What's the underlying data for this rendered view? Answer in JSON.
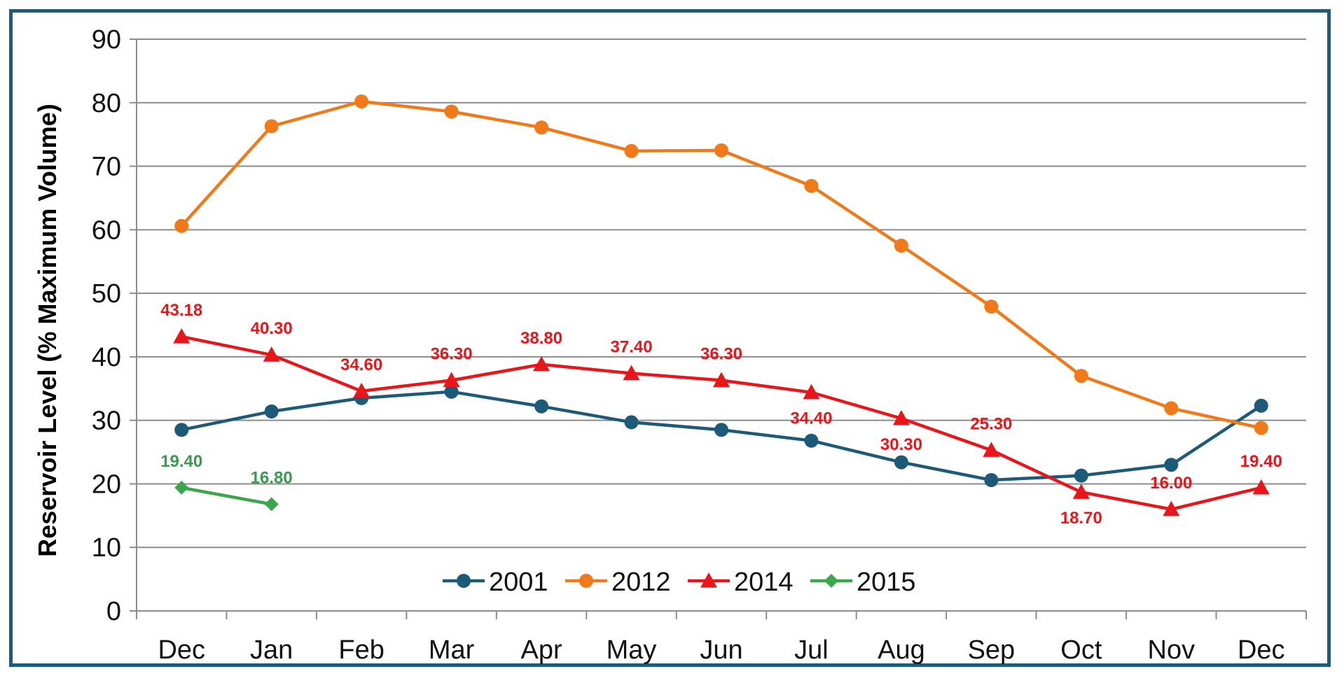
{
  "chart_data": {
    "type": "line",
    "title": "",
    "xlabel": "",
    "ylabel": "Reservoir Level (% Maximum Volume)",
    "ylim": [
      0,
      90
    ],
    "yticks": [
      0,
      10,
      20,
      30,
      40,
      50,
      60,
      70,
      80,
      90
    ],
    "categories": [
      "Dec",
      "Jan",
      "Feb",
      "Mar",
      "Apr",
      "May",
      "Jun",
      "Jul",
      "Aug",
      "Sep",
      "Oct",
      "Nov",
      "Dec"
    ],
    "grid": true,
    "legend_position": "bottom-center",
    "series": [
      {
        "name": "2001",
        "color": "#1c5a78",
        "marker": "circle",
        "values": [
          28.5,
          31.4,
          33.5,
          34.5,
          32.2,
          29.7,
          28.5,
          26.8,
          23.4,
          20.6,
          21.3,
          23.0,
          32.3
        ],
        "labels": []
      },
      {
        "name": "2012",
        "color": "#f07a1a",
        "marker": "circle",
        "values": [
          60.6,
          76.3,
          80.2,
          78.6,
          76.1,
          72.4,
          72.5,
          66.9,
          57.5,
          47.9,
          37.0,
          31.9,
          28.8
        ],
        "labels": []
      },
      {
        "name": "2014",
        "color": "#e8161a",
        "marker": "triangle",
        "values": [
          43.18,
          40.3,
          34.6,
          36.3,
          38.8,
          37.4,
          36.3,
          34.4,
          30.3,
          25.3,
          18.7,
          16.0,
          19.4
        ],
        "labels": [
          "43.18",
          "40.30",
          "34.60",
          "36.30",
          "38.80",
          "37.40",
          "36.30",
          "34.40",
          "30.30",
          "25.30",
          "18.70",
          "16.00",
          "19.40"
        ],
        "label_positions": [
          "above",
          "above",
          "above",
          "above",
          "above",
          "above",
          "above",
          "below",
          "below",
          "above",
          "below",
          "above",
          "above"
        ]
      },
      {
        "name": "2015",
        "color": "#3aa84a",
        "label_color": "#3a9a4e",
        "marker": "diamond",
        "values": [
          19.4,
          16.8,
          null,
          null,
          null,
          null,
          null,
          null,
          null,
          null,
          null,
          null,
          null
        ],
        "labels": [
          "19.40",
          "16.80"
        ],
        "label_positions": [
          "above",
          "above"
        ]
      }
    ]
  }
}
